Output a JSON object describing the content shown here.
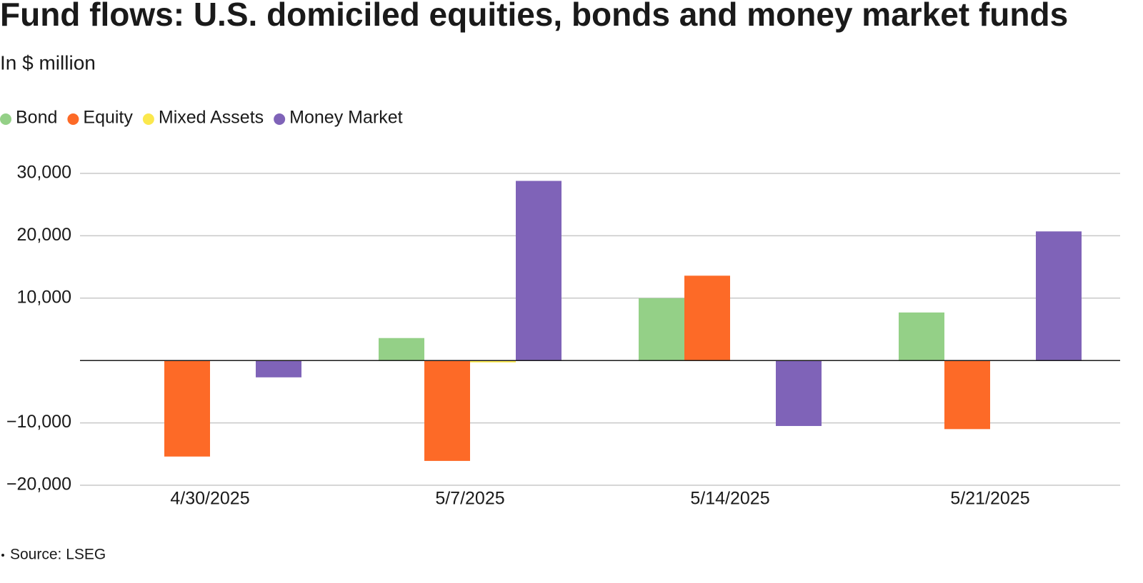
{
  "chart_data": {
    "type": "bar",
    "title": "Fund flows: U.S. domiciled equities, bonds and money market funds",
    "subtitle": "In $ million",
    "source": "Source: LSEG",
    "categories": [
      "4/30/2025",
      "5/7/2025",
      "5/14/2025",
      "5/21/2025"
    ],
    "series": [
      {
        "name": "Bond",
        "color": "#94d087",
        "values": [
          0,
          3600,
          10000,
          7700
        ]
      },
      {
        "name": "Equity",
        "color": "#fd6a27",
        "values": [
          -15400,
          -16100,
          13600,
          -11000
        ]
      },
      {
        "name": "Mixed Assets",
        "color": "#fbe84d",
        "values": [
          0,
          -300,
          0,
          0
        ]
      },
      {
        "name": "Money Market",
        "color": "#7f63b8",
        "values": [
          -2700,
          28800,
          -10500,
          20700
        ]
      }
    ],
    "ylim": [
      -20000,
      30000
    ],
    "yticks": [
      {
        "value": -20000,
        "label": "−20,000"
      },
      {
        "value": -10000,
        "label": "−10,000"
      },
      {
        "value": 10000,
        "label": "10,000"
      },
      {
        "value": 20000,
        "label": "20,000"
      },
      {
        "value": 30000,
        "label": "30,000"
      }
    ],
    "grid": true
  }
}
